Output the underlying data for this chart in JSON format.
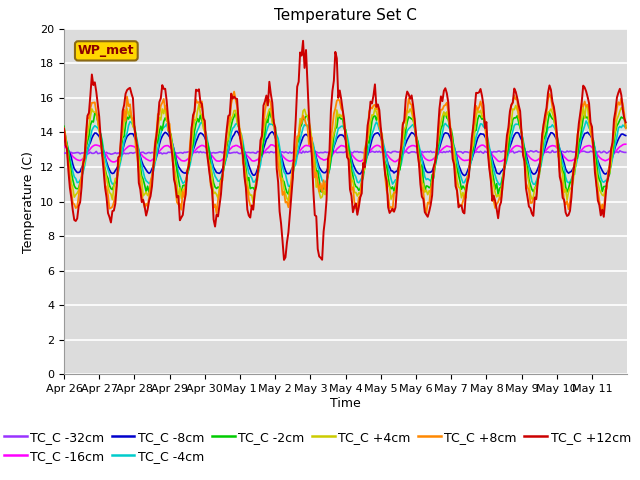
{
  "title": "Temperature Set C",
  "xlabel": "Time",
  "ylabel": "Temperature (C)",
  "ylim": [
    0,
    20
  ],
  "yticks": [
    0,
    2,
    4,
    6,
    8,
    10,
    12,
    14,
    16,
    18,
    20
  ],
  "x_labels": [
    "Apr 26",
    "Apr 27",
    "Apr 28",
    "Apr 29",
    "Apr 30",
    "May 1",
    "May 2",
    "May 3",
    "May 4",
    "May 5",
    "May 6",
    "May 7",
    "May 8",
    "May 9",
    "May 10",
    "May 11"
  ],
  "wp_met_label": "WP_met",
  "wp_met_box_color": "#FFD700",
  "wp_met_text_color": "#8B0000",
  "background_color": "#DCDCDC",
  "grid_color": "white",
  "series": [
    {
      "label": "TC_C -32cm",
      "color": "#9933FF"
    },
    {
      "label": "TC_C -16cm",
      "color": "#FF00FF"
    },
    {
      "label": "TC_C -8cm",
      "color": "#0000CC"
    },
    {
      "label": "TC_C -4cm",
      "color": "#00CCCC"
    },
    {
      "label": "TC_C -2cm",
      "color": "#00CC00"
    },
    {
      "label": "TC_C +4cm",
      "color": "#CCCC00"
    },
    {
      "label": "TC_C +8cm",
      "color": "#FF8800"
    },
    {
      "label": "TC_C +12cm",
      "color": "#CC0000"
    }
  ],
  "title_fontsize": 11,
  "axis_fontsize": 9,
  "legend_fontsize": 9,
  "tick_fontsize": 8
}
